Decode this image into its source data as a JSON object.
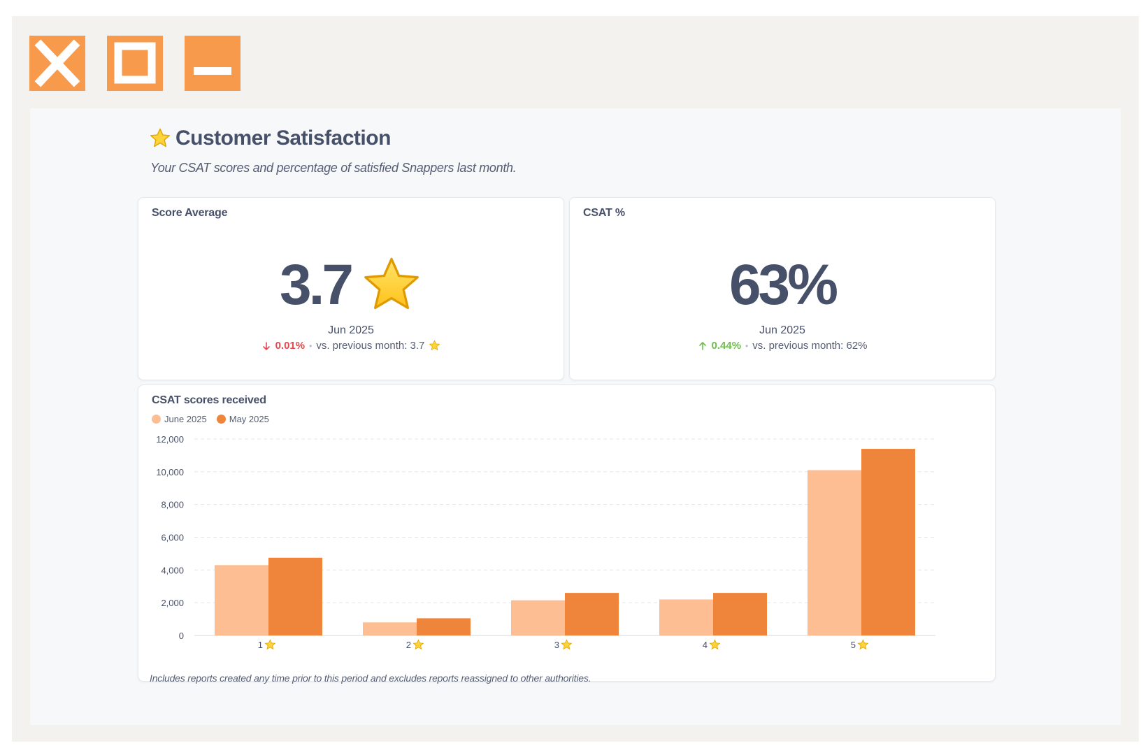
{
  "window_controls": {
    "close_icon": "close-icon",
    "maximize_icon": "maximize-icon",
    "minimize_icon": "minimize-icon",
    "accent": "#f89a4c"
  },
  "header": {
    "title": "Customer Satisfaction",
    "title_icon": "star-icon",
    "subtitle": "Your CSAT scores and percentage of satisfied Snappers last month."
  },
  "score_average": {
    "title": "Score Average",
    "value": "3.7",
    "period": "Jun 2025",
    "delta": "0.01%",
    "delta_direction": "down",
    "comparison": "vs. previous month: 3.7",
    "delta_color": "#e5484d"
  },
  "csat_percent": {
    "title": "CSAT %",
    "value": "63%",
    "period": "Jun 2025",
    "delta": "0.44%",
    "delta_direction": "up",
    "comparison": "vs. previous month: 62%",
    "delta_color": "#6cc04a"
  },
  "scores_chart": {
    "title": "CSAT scores received",
    "legend": [
      "June 2025",
      "May 2025"
    ]
  },
  "chart_data": {
    "type": "bar",
    "title": "CSAT scores received",
    "categories": [
      "1",
      "2",
      "3",
      "4",
      "5"
    ],
    "category_suffix_icon": "star-icon",
    "series": [
      {
        "name": "June 2025",
        "values": [
          4300,
          800,
          2150,
          2200,
          10100
        ],
        "color": "#fdbe93"
      },
      {
        "name": "May 2025",
        "values": [
          4750,
          1050,
          2600,
          2600,
          11400
        ],
        "color": "#ee853b"
      }
    ],
    "ylim": [
      0,
      12000
    ],
    "yticks": [
      "0",
      "2,000",
      "4,000",
      "6,000",
      "8,000",
      "10,000",
      "12,000"
    ],
    "ytick_values": [
      0,
      2000,
      4000,
      6000,
      8000,
      10000,
      12000
    ],
    "grid": true,
    "legend_position": "top-left"
  },
  "footnote": "Includes reports created any time prior to this period and excludes reports reassigned to other authorities."
}
